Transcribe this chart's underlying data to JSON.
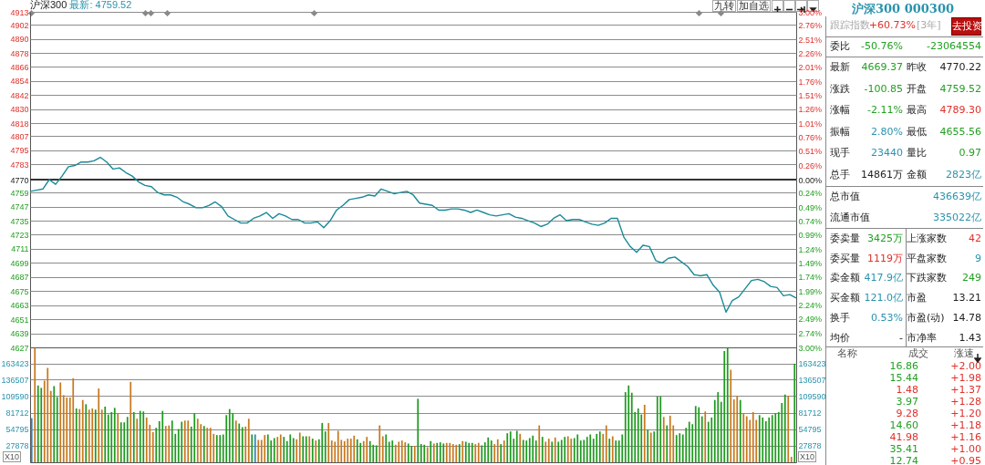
{
  "chart_data": [
    {
      "type": "line",
      "title": "沪深300",
      "subtitle": "最新: 4759.52",
      "annotations": [
        "九转",
        "加自选"
      ],
      "categories": [
        null,
        null,
        null,
        null,
        null,
        null,
        null,
        null,
        null,
        null,
        null,
        null,
        null,
        null,
        null,
        null,
        null,
        null,
        null,
        null,
        null,
        null,
        null,
        null,
        null,
        null,
        null,
        null,
        null,
        null,
        null,
        null,
        null,
        null,
        null,
        null,
        null,
        null,
        null,
        null,
        null,
        null,
        null,
        null,
        null,
        null,
        null,
        null,
        null,
        null,
        null,
        null,
        null,
        null,
        null,
        null,
        null,
        null,
        null,
        null,
        null,
        null,
        null,
        null,
        null,
        null,
        null,
        null,
        null,
        null,
        null,
        null,
        null,
        null,
        null,
        null,
        null,
        null,
        null,
        null,
        null,
        null,
        null,
        null,
        null,
        null,
        null,
        null,
        null,
        null,
        null,
        null,
        null,
        null,
        null,
        null,
        null,
        null,
        null,
        null,
        null,
        null,
        null,
        null,
        null,
        null,
        null,
        null,
        null,
        null,
        null,
        null,
        null,
        null,
        null,
        null,
        null,
        null,
        null,
        null,
        null
      ],
      "series": [
        {
          "color": "#1a8a96",
          "values": [
            4760,
            4761,
            4762,
            4770,
            4766,
            4773,
            4781,
            4782,
            4785,
            4785,
            4786,
            4789,
            4785,
            4779,
            4780,
            4776,
            4773,
            4768,
            4765,
            4764,
            4759,
            4757,
            4757,
            4755,
            4751,
            4749,
            4746,
            4746,
            4748,
            4751,
            4747,
            4739,
            4736,
            4733,
            4733,
            4737,
            4739,
            4742,
            4737,
            4741,
            4739,
            4736,
            4736,
            4733,
            4733,
            4734,
            4729,
            4735,
            4744,
            4748,
            4753,
            4754,
            4755,
            4757,
            4756,
            4762,
            4760,
            4758,
            4759,
            4760,
            4757,
            4750,
            4749,
            4748,
            4744,
            4744,
            4745,
            4745,
            4744,
            4742,
            4744,
            4742,
            4740,
            4739,
            4740,
            4741,
            4738,
            4737,
            4735,
            4733,
            4730,
            4732,
            4737,
            4740,
            4735,
            4736,
            4736,
            4734,
            4732,
            4731,
            4733,
            4737,
            4737,
            4721,
            4713,
            4708,
            4714,
            4713,
            4701,
            4699,
            4703,
            4704,
            4700,
            4696,
            4689,
            4688,
            4689,
            4680,
            4674,
            4657,
            4667,
            4670,
            4677,
            4684,
            4685,
            4683,
            4679,
            4678,
            4671,
            4672,
            4669
          ]
        }
      ],
      "ylim": [
        4627,
        4913
      ],
      "yticks": [
        4913,
        4902,
        4890,
        4878,
        4866,
        4854,
        4842,
        4830,
        4818,
        4807,
        4795,
        4783,
        4770,
        4759,
        4747,
        4735,
        4723,
        4711,
        4699,
        4687,
        4675,
        4663,
        4651,
        4639,
        4627
      ],
      "y2lim": [
        -3,
        3
      ],
      "y2ticks": [
        {
          "value": 3,
          "label": "3.00%"
        },
        {
          "value": 2.76,
          "label": "2.76%"
        },
        {
          "value": 2.51,
          "label": "2.51%"
        },
        {
          "value": 2.26,
          "label": "2.26%"
        },
        {
          "value": 2.01,
          "label": "2.01%"
        },
        {
          "value": 1.76,
          "label": "1.76%"
        },
        {
          "value": 1.51,
          "label": "1.51%"
        },
        {
          "value": 1.26,
          "label": "1.26%"
        },
        {
          "value": 1.01,
          "label": "1.01%"
        },
        {
          "value": 0.76,
          "label": "0.76%"
        },
        {
          "value": 0.51,
          "label": "0.51%"
        },
        {
          "value": 0.26,
          "label": "0.26%"
        },
        {
          "value": 0,
          "label": "0.00%"
        },
        {
          "value": -0.24,
          "label": "0.24%"
        },
        {
          "value": -0.49,
          "label": "0.49%"
        },
        {
          "value": -0.74,
          "label": "0.74%"
        },
        {
          "value": -0.99,
          "label": "0.99%"
        },
        {
          "value": -1.24,
          "label": "1.24%"
        },
        {
          "value": -1.49,
          "label": "1.49%"
        },
        {
          "value": -1.74,
          "label": "1.74%"
        },
        {
          "value": -1.99,
          "label": "1.99%"
        },
        {
          "value": -2.24,
          "label": "2.24%"
        },
        {
          "value": -2.49,
          "label": "2.49%"
        },
        {
          "value": -2.74,
          "label": "2.74%"
        },
        {
          "value": -3,
          "label": "3.00%"
        }
      ],
      "ref_lines": [
        {
          "axis": "y",
          "value": 4770
        }
      ],
      "grid": "y",
      "tick_labels": "y"
    },
    {
      "type": "bar",
      "annotations": [
        "X10",
        "X10"
      ],
      "categories": [
        null,
        null,
        null,
        null,
        null,
        null,
        null,
        null,
        null,
        null,
        null,
        null,
        null,
        null,
        null,
        null,
        null,
        null,
        null,
        null,
        null,
        null,
        null,
        null,
        null,
        null,
        null,
        null,
        null,
        null,
        null,
        null,
        null,
        null,
        null,
        null,
        null,
        null,
        null,
        null,
        null,
        null,
        null,
        null,
        null,
        null,
        null,
        null,
        null,
        null,
        null,
        null,
        null,
        null,
        null,
        null,
        null,
        null,
        null,
        null,
        null,
        null,
        null,
        null,
        null,
        null,
        null,
        null,
        null,
        null,
        null,
        null,
        null,
        null,
        null,
        null,
        null,
        null,
        null,
        null,
        null,
        null,
        null,
        null,
        null,
        null,
        null,
        null,
        null,
        null,
        null,
        null,
        null,
        null,
        null,
        null,
        null,
        null,
        null,
        null,
        null,
        null,
        null,
        null,
        null,
        null,
        null,
        null,
        null,
        null,
        null,
        null,
        null,
        null,
        null,
        null,
        null,
        null,
        null,
        null,
        null,
        null,
        null,
        null,
        null,
        null,
        null,
        null,
        null,
        null,
        null,
        null,
        null,
        null,
        null,
        null,
        null,
        null,
        null,
        null,
        null,
        null,
        null,
        null,
        null,
        null,
        null,
        null,
        null,
        null,
        null,
        null,
        null,
        null,
        null,
        null,
        null,
        null,
        null,
        null,
        null,
        null,
        null,
        null,
        null,
        null,
        null,
        null,
        null,
        null,
        null,
        null,
        null,
        null,
        null,
        null,
        null,
        null,
        null,
        null,
        null,
        null,
        null,
        null,
        null,
        null,
        null,
        null,
        null,
        null,
        null,
        null,
        null,
        null,
        null,
        null,
        null,
        null,
        null,
        null,
        null,
        null,
        null,
        null,
        null,
        null,
        null,
        null,
        null,
        null,
        null,
        null,
        null,
        null,
        null,
        null,
        null,
        null,
        null,
        null,
        null,
        null,
        null,
        null,
        null,
        null,
        null,
        null,
        null,
        null,
        null,
        null,
        null,
        null,
        null,
        null,
        null,
        null,
        null,
        null
      ],
      "values": [
        73000,
        189000,
        127000,
        123000,
        135000,
        156000,
        118000,
        126000,
        108000,
        132000,
        111000,
        107000,
        107000,
        139000,
        89000,
        88000,
        103000,
        96000,
        87000,
        89000,
        87000,
        122000,
        87000,
        92000,
        79000,
        83000,
        90000,
        81000,
        66000,
        66000,
        75000,
        133000,
        83000,
        72000,
        85000,
        84000,
        74000,
        62000,
        50000,
        57000,
        68000,
        85000,
        60000,
        61000,
        69000,
        47000,
        55000,
        67000,
        69000,
        69000,
        59000,
        81000,
        72000,
        63000,
        60000,
        57000,
        57000,
        47000,
        45000,
        45000,
        46000,
        78000,
        88000,
        81000,
        69000,
        64000,
        58000,
        59000,
        72000,
        46000,
        46000,
        37000,
        37000,
        45000,
        46000,
        36000,
        40000,
        42000,
        46000,
        42000,
        35000,
        46000,
        40000,
        38000,
        49000,
        43000,
        43000,
        43000,
        39000,
        36000,
        38000,
        65000,
        51000,
        65000,
        36000,
        34000,
        52000,
        37000,
        35000,
        39000,
        39000,
        44000,
        38000,
        32000,
        35000,
        42000,
        35000,
        29000,
        28000,
        61000,
        43000,
        46000,
        34000,
        36000,
        29000,
        34000,
        36000,
        33000,
        31000,
        27000,
        27000,
        105000,
        30000,
        29000,
        25000,
        35000,
        31000,
        32000,
        33000,
        31000,
        32000,
        32000,
        30000,
        29000,
        30000,
        35000,
        34000,
        32000,
        32000,
        30000,
        32000,
        28000,
        33000,
        41000,
        36000,
        30000,
        38000,
        30000,
        36000,
        48000,
        51000,
        39000,
        52000,
        47000,
        37000,
        36000,
        40000,
        44000,
        36000,
        61000,
        42000,
        34000,
        39000,
        34000,
        41000,
        34000,
        37000,
        42000,
        43000,
        39000,
        40000,
        46000,
        36000,
        37000,
        42000,
        46000,
        39000,
        47000,
        51000,
        47000,
        61000,
        39000,
        43000,
        36000,
        36000,
        46000,
        116000,
        127000,
        115000,
        83000,
        89000,
        79000,
        95000,
        54000,
        49000,
        51000,
        109000,
        109000,
        75000,
        61000,
        77000,
        61000,
        45000,
        48000,
        46000,
        57000,
        67000,
        63000,
        93000,
        91000,
        76000,
        84000,
        67000,
        74000,
        103000,
        116000,
        100000,
        184000,
        189000,
        153000,
        104000,
        110000,
        103000,
        81000,
        76000,
        70000,
        83000,
        70000,
        78000,
        74000,
        68000,
        74000,
        78000,
        81000,
        83000,
        98000,
        112000,
        110000,
        9000,
        163000
      ],
      "colors": [
        "#2a86b8",
        "#c8781e",
        "#1f9a1f",
        "#1f9a1f",
        "#c8781e",
        "#c8781e",
        "#c8781e",
        "#1f9a1f",
        "#1f9a1f",
        "#c8781e",
        "#c8781e",
        "#c8781e",
        "#c8781e",
        "#c8781e",
        "#1f9a1f",
        "#c8781e",
        "#c8781e",
        "#1f9a1f",
        "#c8781e",
        "#c8781e",
        "#1f9a1f",
        "#c8781e",
        "#c8781e",
        "#1f9a1f",
        "#1f9a1f",
        "#1f9a1f",
        "#1f9a1f",
        "#c8781e",
        "#1f9a1f",
        "#1f9a1f",
        "#1f9a1f",
        "#c8781e",
        "#1f9a1f",
        "#c8781e",
        "#1f9a1f",
        "#1f9a1f",
        "#c8781e",
        "#c8781e",
        "#c8781e",
        "#1f9a1f",
        "#1f9a1f",
        "#1f9a1f",
        "#c8781e",
        "#c8781e",
        "#1f9a1f",
        "#1f9a1f",
        "#1f9a1f",
        "#1f9a1f",
        "#c8781e",
        "#c8781e",
        "#1f9a1f",
        "#1f9a1f",
        "#c8781e",
        "#c8781e",
        "#1f9a1f",
        "#c8781e",
        "#c8781e",
        "#c8781e",
        "#1f9a1f",
        "#1f9a1f",
        "#1f9a1f",
        "#1f9a1f",
        "#1f9a1f",
        "#1f9a1f",
        "#c8781e",
        "#1f9a1f",
        "#1f9a1f",
        "#c8781e",
        "#c8781e",
        "#1f9a1f",
        "#2a86b8",
        "#c8781e",
        "#c8781e",
        "#c8781e",
        "#1f9a1f",
        "#1f9a1f",
        "#1f9a1f",
        "#c8781e",
        "#c8781e",
        "#1f9a1f",
        "#1f9a1f",
        "#1f9a1f",
        "#1f9a1f",
        "#c8781e",
        "#c8781e",
        "#1f9a1f",
        "#1f9a1f",
        "#c8781e",
        "#1f9a1f",
        "#c8781e",
        "#1f9a1f",
        "#1f9a1f",
        "#1f9a1f",
        "#c8781e",
        "#c8781e",
        "#c8781e",
        "#c8781e",
        "#c8781e",
        "#c8781e",
        "#c8781e",
        "#c8781e",
        "#c8781e",
        "#1f9a1f",
        "#1f9a1f",
        "#c8781e",
        "#c8781e",
        "#1f9a1f",
        "#1f9a1f",
        "#1f9a1f",
        "#c8781e",
        "#c8781e",
        "#1f9a1f",
        "#1f9a1f",
        "#1f9a1f",
        "#c8781e",
        "#c8781e",
        "#c8781e",
        "#c8781e",
        "#1f9a1f",
        "#1f9a1f",
        "#c8781e",
        "#1f9a1f",
        "#1f9a1f",
        "#1f9a1f",
        "#c8781e",
        "#1f9a1f",
        "#c8781e",
        "#1f9a1f",
        "#1f9a1f",
        "#1f9a1f",
        "#c8781e",
        "#c8781e",
        "#c8781e",
        "#c8781e",
        "#1f9a1f",
        "#c8781e",
        "#1f9a1f",
        "#1f9a1f",
        "#1f9a1f",
        "#c8781e",
        "#c8781e",
        "#1f9a1f",
        "#1f9a1f",
        "#1f9a1f",
        "#1f9a1f",
        "#c8781e",
        "#c8781e",
        "#1f9a1f",
        "#c8781e",
        "#1f9a1f",
        "#1f9a1f",
        "#1f9a1f",
        "#1f9a1f",
        "#c8781e",
        "#1f9a1f",
        "#1f9a1f",
        "#1f9a1f",
        "#1f9a1f",
        "#1f9a1f",
        "#c8781e",
        "#1f9a1f",
        "#c8781e",
        "#c8781e",
        "#1f9a1f",
        "#c8781e",
        "#1f9a1f",
        "#1f9a1f",
        "#1f9a1f",
        "#c8781e",
        "#c8781e",
        "#1f9a1f",
        "#1f9a1f",
        "#1f9a1f",
        "#1f9a1f",
        "#1f9a1f",
        "#1f9a1f",
        "#1f9a1f",
        "#1f9a1f",
        "#1f9a1f",
        "#c8781e",
        "#c8781e",
        "#1f9a1f",
        "#c8781e",
        "#1f9a1f",
        "#1f9a1f",
        "#1f9a1f",
        "#1f9a1f",
        "#1f9a1f",
        "#1f9a1f",
        "#1f9a1f",
        "#1f9a1f",
        "#1f9a1f",
        "#c8781e",
        "#1f9a1f",
        "#c8781e",
        "#1f9a1f",
        "#1f9a1f",
        "#1f9a1f",
        "#c8781e",
        "#1f9a1f",
        "#c8781e",
        "#c8781e",
        "#1f9a1f",
        "#1f9a1f",
        "#1f9a1f",
        "#1f9a1f",
        "#1f9a1f",
        "#1f9a1f",
        "#1f9a1f",
        "#1f9a1f",
        "#1f9a1f",
        "#c8781e",
        "#1f9a1f",
        "#1f9a1f",
        "#1f9a1f",
        "#1f9a1f",
        "#1f9a1f",
        "#1f9a1f",
        "#1f9a1f",
        "#c8781e",
        "#c8781e",
        "#c8781e",
        "#1f9a1f",
        "#c8781e",
        "#c8781e",
        "#c8781e",
        "#c8781e",
        "#c8781e",
        "#1f9a1f",
        "#1f9a1f",
        "#1f9a1f",
        "#1f9a1f",
        "#1f9a1f",
        "#1f9a1f",
        "#1f9a1f",
        "#1f9a1f",
        "#1f9a1f",
        "#c8781e",
        "#c8781e",
        "#1f9a1f"
      ],
      "ylim": [
        0,
        190000
      ],
      "yticks": [
        27878,
        54795,
        81712,
        109590,
        136507,
        163423
      ],
      "y2lim": [
        0,
        190000
      ],
      "y2ticks": [
        27878,
        54795,
        81712,
        109590,
        136507,
        163423
      ],
      "grid": "y",
      "tick_labels": "y"
    },
    {
      "type": "other",
      "title": "沪深300 000300",
      "annotations": [
        "跟踪指数",
        "+60.73%",
        "[3年]",
        "去投资",
        "委比",
        "-50.76%",
        "-23064554",
        "最新",
        "4669.37",
        "昨收",
        "4770.22",
        "涨跌",
        "-100.85",
        "开盘",
        "4759.52",
        "涨幅",
        "-2.11%",
        "最高",
        "4789.30",
        "振幅",
        "2.80%",
        "最低",
        "4655.56",
        "现手",
        "23440",
        "量比",
        "0.97",
        "总手",
        "14861万",
        "金额",
        "2823亿",
        "总市值",
        "436639亿",
        "流通市值",
        "335022亿",
        "委卖量",
        "3425万",
        "上涨家数",
        "42",
        "委买量",
        "1119万",
        "平盘家数",
        "9",
        "卖金额",
        "417.9亿",
        "下跌家数",
        "249",
        "买金额",
        "121.0亿",
        "市盈",
        "13.21",
        "换手",
        "0.53%",
        "市盈(动)",
        "14.78",
        "均价",
        "-",
        "市净率",
        "1.43",
        "名称",
        "成交",
        "涨速",
        "16.86",
        "+2.00",
        "15.44",
        "+1.98",
        "1.48",
        "+1.37",
        "3.97",
        "+1.28",
        "9.28",
        "+1.20",
        "14.60",
        "+1.18",
        "41.98",
        "+1.16",
        "35.41",
        "+1.00",
        "12.74",
        "+0.95"
      ]
    }
  ]
}
